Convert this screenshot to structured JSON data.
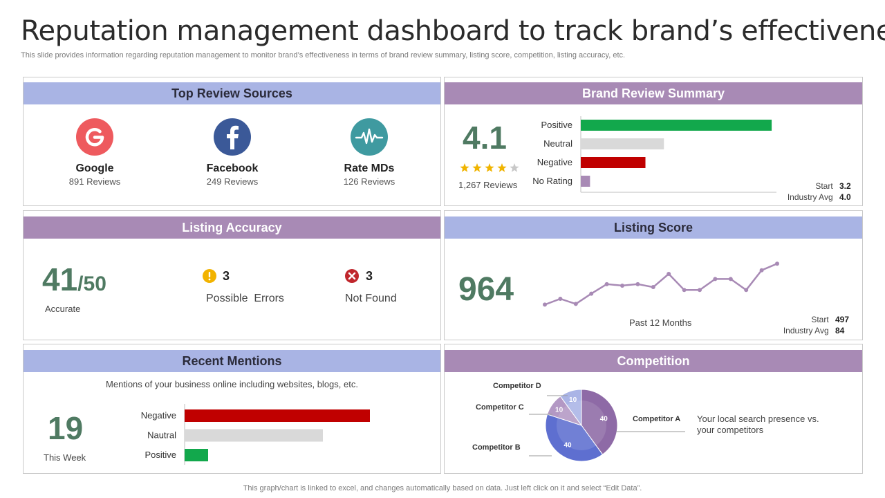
{
  "header": {
    "title": "Reputation management dashboard to track brand’s effectiveness",
    "subtitle": "This slide provides information regarding reputation management to monitor brand’s effectiveness in terms of brand review summary, listing score, competition, listing accuracy, etc.",
    "footer": "This graph/chart is linked to excel,  and changes automatically based on data. Just left click on it and select “Edit Data”."
  },
  "colors": {
    "blue_header": "#a9b4e4",
    "purple_header": "#a88ab5",
    "green": "#12a84c",
    "red": "#c00000",
    "gray": "#d9d9d9",
    "big_number": "#4f7a62"
  },
  "review_sources": {
    "title": "Top Review Sources",
    "items": [
      {
        "name": "Google",
        "count": "891 Reviews",
        "icon": "google-icon"
      },
      {
        "name": "Facebook",
        "count": "249 Reviews",
        "icon": "facebook-icon"
      },
      {
        "name": "Rate MDs",
        "count": "126 Reviews",
        "icon": "heartbeat-icon"
      }
    ]
  },
  "brand_review": {
    "title": "Brand Review Summary",
    "rating": "4.1",
    "stars_filled": 4,
    "stars_total": 5,
    "reviews": "1,267 Reviews",
    "start_label": "Start",
    "start_value": "3.2",
    "industry_label": "Industry Avg",
    "industry_value": "4.0"
  },
  "listing_accuracy": {
    "title": "Listing Accuracy",
    "accurate_value": "41",
    "accurate_total": "/50",
    "accurate_label": "Accurate",
    "errors_value": "3",
    "errors_label": "Possible  Errors",
    "notfound_value": "3",
    "notfound_label": "Not Found"
  },
  "listing_score": {
    "title": "Listing Score",
    "score": "964",
    "period_label": "Past 12 Months",
    "start_label": "Start",
    "start_value": "497",
    "industry_label": "Industry Avg",
    "industry_value": "84"
  },
  "recent_mentions": {
    "title": "Recent Mentions",
    "description": "Mentions of your business online including websites, blogs, etc.",
    "count": "19",
    "count_label": "This Week"
  },
  "competition": {
    "title": "Competition",
    "description_line1": "Your local search presence vs.",
    "description_line2": "your competitors"
  },
  "chart_data": [
    {
      "id": "brand-review-bars",
      "type": "bar",
      "orientation": "horizontal",
      "categories": [
        "Positive",
        "Neutral",
        "Negative",
        "No Rating"
      ],
      "values": [
        62,
        27,
        21,
        3
      ],
      "colors": [
        "#12a84c",
        "#d9d9d9",
        "#c00000",
        "#a88ab5"
      ],
      "xlim": [
        0,
        64
      ]
    },
    {
      "id": "listing-score-line",
      "type": "line",
      "values": [
        10,
        18,
        11,
        25,
        38,
        36,
        38,
        34,
        52,
        30,
        30,
        45,
        45,
        30,
        57,
        66
      ],
      "ylim": [
        0,
        70
      ],
      "color": "#a88ab5"
    },
    {
      "id": "recent-mentions-bars",
      "type": "bar",
      "orientation": "horizontal",
      "categories": [
        "Negative",
        "Nautral",
        "Positive"
      ],
      "values": [
        67,
        50,
        8.5
      ],
      "colors": [
        "#c00000",
        "#d9d9d9",
        "#12a84c"
      ],
      "xlim": [
        0,
        70
      ]
    },
    {
      "id": "competition-pie",
      "type": "pie",
      "labels": [
        "Competitor A",
        "Competitor B",
        "Competitor C",
        "Competitor D"
      ],
      "values": [
        40,
        40,
        10,
        10
      ],
      "colors": [
        "#8e6aa6",
        "#5e6fd0",
        "#b398c4",
        "#aab4e6"
      ]
    }
  ]
}
